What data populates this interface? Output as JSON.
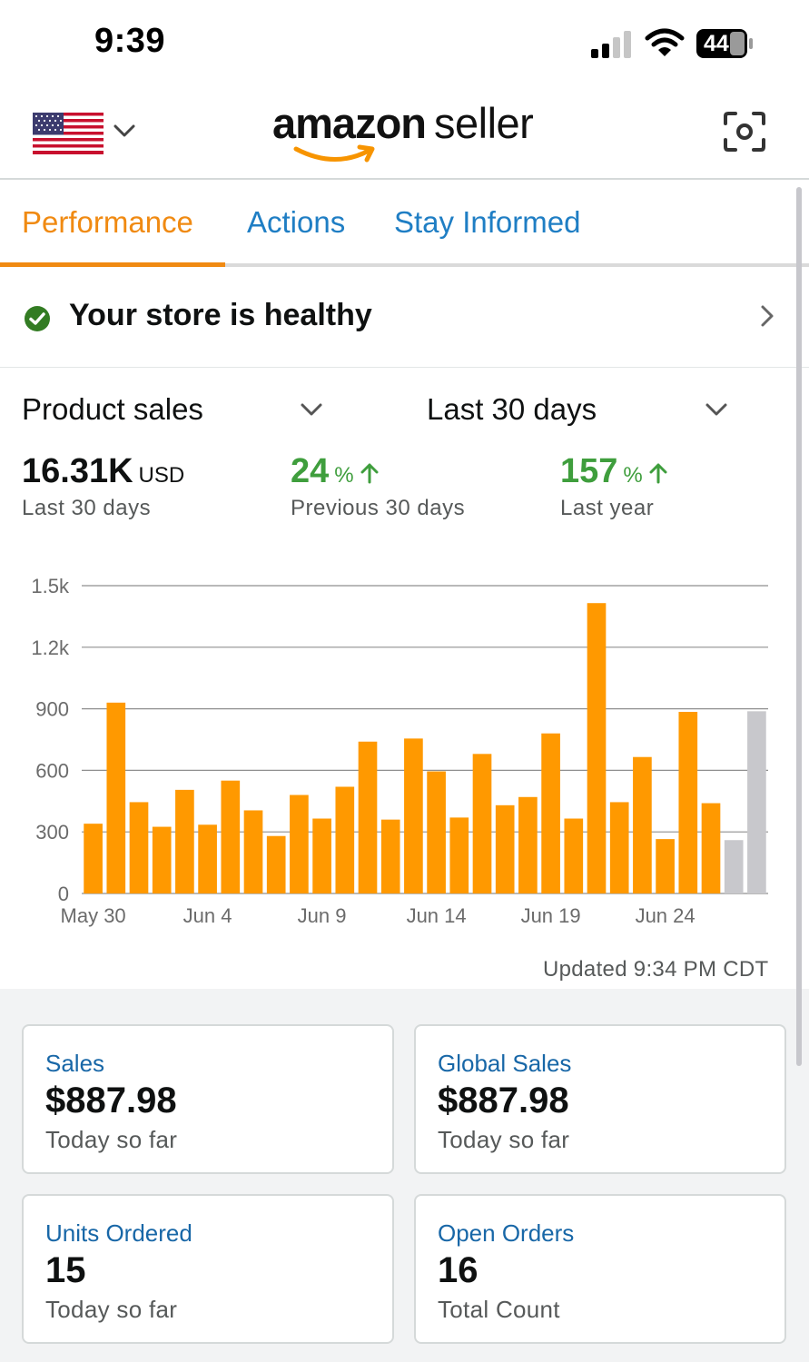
{
  "status_bar": {
    "time": "9:39",
    "battery": "44"
  },
  "header": {
    "brand_amazon": "amazon",
    "brand_seller": "seller",
    "flag_icon": "us-flag-icon",
    "scan_icon": "scan-icon"
  },
  "tabs": [
    {
      "label": "Performance",
      "active": true
    },
    {
      "label": "Actions",
      "active": false
    },
    {
      "label": "Stay Informed",
      "active": false
    }
  ],
  "health": {
    "text": "Your store is healthy"
  },
  "selectors": {
    "metric": "Product sales",
    "period": "Last 30 days"
  },
  "stats": {
    "total_value": "16.31K",
    "total_unit": "USD",
    "total_label": "Last 30 days",
    "prev_pct": "24",
    "prev_label": "Previous 30 days",
    "year_pct": "157",
    "year_label": "Last year",
    "pct_suffix": "%",
    "up_icon": "arrow-up-icon"
  },
  "chart_data": {
    "type": "bar",
    "ylim": [
      0,
      1500
    ],
    "yticks": [
      {
        "value": 0,
        "label": "0"
      },
      {
        "value": 300,
        "label": "300"
      },
      {
        "value": 600,
        "label": "600"
      },
      {
        "value": 900,
        "label": "900"
      },
      {
        "value": 1200,
        "label": "1.2k"
      },
      {
        "value": 1500,
        "label": "1.5k"
      }
    ],
    "xtick_labels": [
      {
        "index": 0,
        "label": "May 30"
      },
      {
        "index": 5,
        "label": "Jun 4"
      },
      {
        "index": 10,
        "label": "Jun 9"
      },
      {
        "index": 15,
        "label": "Jun 14"
      },
      {
        "index": 20,
        "label": "Jun 19"
      },
      {
        "index": 25,
        "label": "Jun 24"
      }
    ],
    "values": [
      340,
      930,
      445,
      325,
      505,
      335,
      550,
      405,
      280,
      480,
      365,
      520,
      740,
      360,
      755,
      595,
      370,
      680,
      430,
      470,
      780,
      365,
      1415,
      445,
      665,
      265,
      885,
      440,
      260,
      887.98
    ],
    "bar_color": "#ff9900",
    "muted_color": "#c8c8cc",
    "muted_indices": [
      28,
      29
    ],
    "grid": true
  },
  "updated": "Updated 9:34 PM CDT",
  "cards": {
    "sales": {
      "title": "Sales",
      "value": "$887.98",
      "sub": "Today so far"
    },
    "global": {
      "title": "Global Sales",
      "value": "$887.98",
      "sub": "Today so far"
    },
    "units": {
      "title": "Units Ordered",
      "value": "15",
      "sub": "Today so far"
    },
    "orders": {
      "title": "Open Orders",
      "value": "16",
      "sub": "Total Count"
    }
  }
}
